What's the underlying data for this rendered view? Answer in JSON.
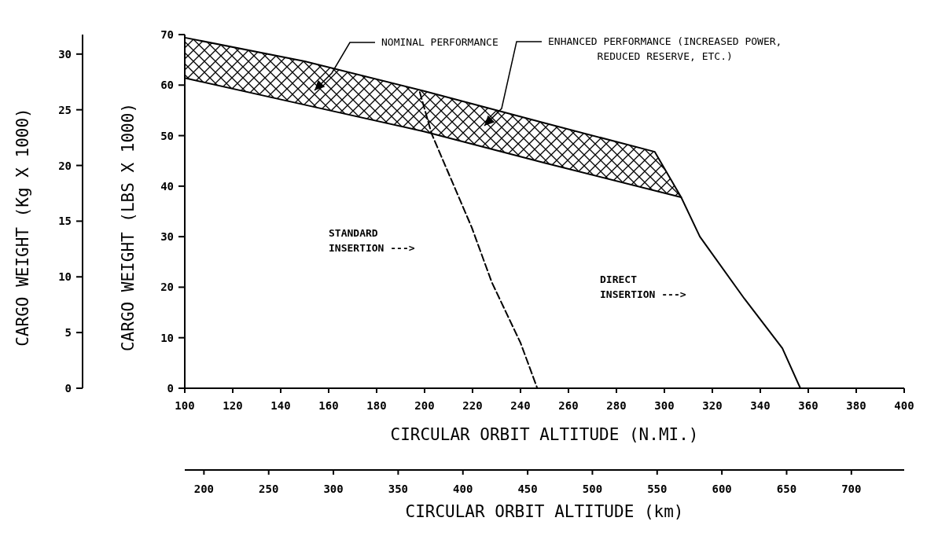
{
  "chart_data": {
    "type": "line",
    "xlabel": "CIRCULAR ORBIT ALTITUDE (N.MI.)",
    "ylabel": "CARGO WEIGHT (LBS X 1000)",
    "y2label": "CARGO WEIGHT (Kg X 1000)",
    "x2label": "CIRCULAR ORBIT ALTITUDE (km)",
    "xlim": [
      100,
      400
    ],
    "xticks": [
      100,
      120,
      140,
      160,
      180,
      200,
      220,
      240,
      260,
      280,
      300,
      320,
      340,
      360,
      380,
      400
    ],
    "ylim": [
      0,
      70
    ],
    "yticks": [
      0,
      10,
      20,
      30,
      40,
      50,
      60,
      70
    ],
    "y2lim": [
      0,
      31.75
    ],
    "y2ticks": [
      0,
      5,
      10,
      15,
      20,
      25,
      30
    ],
    "x2lim": [
      185.2,
      740.8
    ],
    "x2ticks": [
      200,
      250,
      300,
      350,
      400,
      450,
      500,
      550,
      600,
      650,
      700
    ],
    "series": [
      {
        "line_style": "solid",
        "color": "#000000",
        "x": [
          100,
          150,
          200,
          250,
          296,
          307
        ],
        "values": [
          69.4,
          64.7,
          58.8,
          52.5,
          46.8,
          37.8
        ]
      },
      {
        "line_style": "solid",
        "color": "#000000",
        "x": [
          100,
          150,
          200,
          250,
          307,
          314.8,
          333.4,
          349.2,
          356.7
        ],
        "values": [
          61.4,
          56.1,
          50.8,
          44.6,
          37.8,
          30,
          17.7,
          7.9,
          0
        ]
      },
      {
        "line_style": "dashed",
        "color": "#000000",
        "x": [
          198,
          203,
          219.7,
          228,
          234,
          240,
          247
        ],
        "values": [
          58.6,
          50.3,
          31.8,
          21,
          15,
          9,
          0
        ]
      }
    ],
    "annotations": [
      "NOMINAL PERFORMANCE",
      "ENHANCED PERFORMANCE (INCREASED POWER,\nREDUCED RESERVE, ETC.)",
      "STANDARD\nINSERTION --->",
      "DIRECT\nINSERTION --->"
    ]
  }
}
